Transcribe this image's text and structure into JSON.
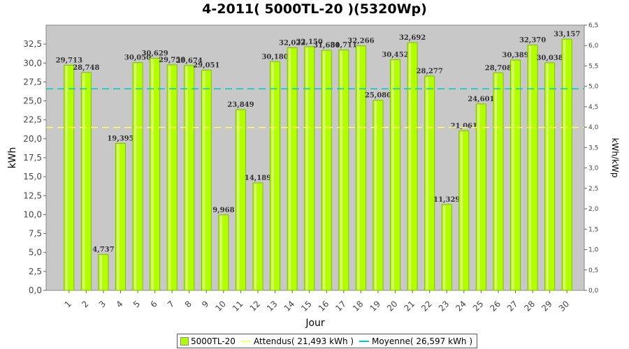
{
  "chart_data": {
    "type": "bar",
    "title": "4-2011( 5000TL-20 )(5320Wp)",
    "xlabel": "Jour",
    "ylabel": "kWh",
    "ylabel_right": "kWh/kWp",
    "ylim": [
      0,
      35
    ],
    "ylim_right": [
      0,
      6.5
    ],
    "y_ticks": [
      "0,0",
      "2,5",
      "5,0",
      "7,5",
      "10,0",
      "12,5",
      "15,0",
      "17,5",
      "20,0",
      "22,5",
      "25,0",
      "27,5",
      "30,0",
      "32,5"
    ],
    "y_ticks_right": [
      "0,0",
      "0,5",
      "1,0",
      "1,5",
      "2,0",
      "2,5",
      "3,0",
      "3,5",
      "4,0",
      "4,5",
      "5,0",
      "5,5",
      "6,0",
      "6,5"
    ],
    "categories": [
      "1",
      "2",
      "3",
      "4",
      "5",
      "6",
      "7",
      "8",
      "9",
      "10",
      "11",
      "12",
      "13",
      "14",
      "15",
      "16",
      "17",
      "18",
      "19",
      "20",
      "21",
      "22",
      "23",
      "24",
      "25",
      "26",
      "27",
      "28",
      "29",
      "30"
    ],
    "series": [
      {
        "name": "5000TL-20",
        "values": [
          29.713,
          28.748,
          4.737,
          19.395,
          30.05,
          30.629,
          29.758,
          29.674,
          29.051,
          9.968,
          23.849,
          14.189,
          30.18,
          32.022,
          32.15,
          31.68,
          31.711,
          32.266,
          25.08,
          30.452,
          32.692,
          28.277,
          11.329,
          21.061,
          24.601,
          28.708,
          30.389,
          32.37,
          30.038,
          33.157
        ],
        "labels": [
          "29,713",
          "28,748",
          "4,737",
          "19,395",
          "30,050",
          "30,629",
          "29,758",
          "29,674",
          "29,051",
          "9,968",
          "23,849",
          "14,189",
          "30,180",
          "32,022",
          "32,150",
          "31,680",
          "31,711",
          "32,266",
          "25,080",
          "30,452",
          "32,692",
          "28,277",
          "11,329",
          "21,061",
          "24,601",
          "28,708",
          "30,389",
          "32,370",
          "30,038",
          "33,157"
        ],
        "color": "#b2ff00"
      }
    ],
    "reference_lines": [
      {
        "name": "Attendus( 21,493 kWh )",
        "value": 21.493,
        "color": "#ffff66"
      },
      {
        "name": "Moyenne( 26,597 kWh )",
        "value": 26.597,
        "color": "#00c8c8"
      }
    ],
    "grid": false,
    "legend": "bottom-center",
    "colors": {
      "plot_bg": "#c8c8c8",
      "bar": "#b2ff00",
      "bar_border": "#7fbf00"
    }
  }
}
